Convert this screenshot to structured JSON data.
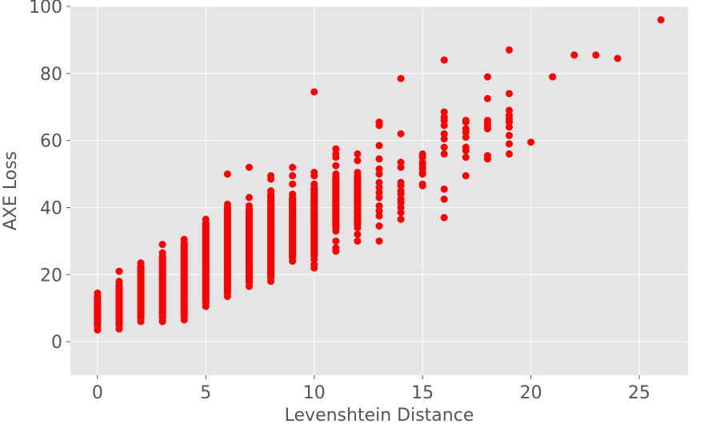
{
  "chart_data": {
    "type": "scatter",
    "title": "",
    "xlabel": "Levenshtein Distance",
    "ylabel": "AXE Loss",
    "xlim": [
      -1.25,
      27.25
    ],
    "ylim": [
      -10,
      100
    ],
    "xticks": [
      0,
      5,
      10,
      15,
      20,
      25
    ],
    "yticks": [
      0,
      20,
      40,
      60,
      80,
      100
    ],
    "grid": true,
    "marker_color": "#ff0000",
    "background_color": "#e5e5e5",
    "grid_color": "#ffffff",
    "series": [
      {
        "columns": [
          {
            "x": 0,
            "min": 3.5,
            "max": 14.5
          },
          {
            "x": 1,
            "min": 3.8,
            "max": 18.0
          },
          {
            "x": 2,
            "min": 6.0,
            "max": 23.5
          },
          {
            "x": 3,
            "min": 6.0,
            "max": 26.5
          },
          {
            "x": 4,
            "min": 6.5,
            "max": 30.5
          },
          {
            "x": 5,
            "min": 10.5,
            "max": 36.5
          },
          {
            "x": 6,
            "min": 13.5,
            "max": 41.0
          },
          {
            "x": 7,
            "min": 16.5,
            "max": 40.5
          },
          {
            "x": 8,
            "min": 18.0,
            "max": 45.0
          },
          {
            "x": 9,
            "min": 24.0,
            "max": 44.0
          },
          {
            "x": 10,
            "min": 24.5,
            "max": 47.0
          },
          {
            "x": 11,
            "min": 33.0,
            "max": 50.0
          },
          {
            "x": 12,
            "min": 34.0,
            "max": 50.5
          }
        ],
        "points": [
          [
            1,
            21.0
          ],
          [
            3,
            29.0
          ],
          [
            6,
            50.0
          ],
          [
            7,
            52.0
          ],
          [
            7,
            43.0
          ],
          [
            8,
            49.5
          ],
          [
            8,
            48.5
          ],
          [
            9,
            52.0
          ],
          [
            9,
            49.5
          ],
          [
            9,
            47.0
          ],
          [
            10,
            74.5
          ],
          [
            10,
            50.5
          ],
          [
            10,
            49.5
          ],
          [
            10,
            22.0
          ],
          [
            10,
            23.0
          ],
          [
            11,
            57.5
          ],
          [
            11,
            56.0
          ],
          [
            11,
            55.0
          ],
          [
            11,
            52.5
          ],
          [
            11,
            28.0
          ],
          [
            11,
            30.0
          ],
          [
            11,
            27.0
          ],
          [
            12,
            56.0
          ],
          [
            12,
            54.0
          ],
          [
            12,
            32.0
          ],
          [
            12,
            30.0
          ],
          [
            13,
            65.5
          ],
          [
            13,
            64.5
          ],
          [
            13,
            58.5
          ],
          [
            13,
            54.5
          ],
          [
            13,
            51.5
          ],
          [
            13,
            50.0
          ],
          [
            13,
            47.5
          ],
          [
            13,
            46.0
          ],
          [
            13,
            44.5
          ],
          [
            13,
            43.0
          ],
          [
            13,
            40.5
          ],
          [
            13,
            39.0
          ],
          [
            13,
            37.5
          ],
          [
            13,
            34.5
          ],
          [
            13,
            30.0
          ],
          [
            14,
            78.5
          ],
          [
            14,
            62.0
          ],
          [
            14,
            53.5
          ],
          [
            14,
            52.0
          ],
          [
            14,
            47.5
          ],
          [
            14,
            46.5
          ],
          [
            14,
            45.0
          ],
          [
            14,
            44.0
          ],
          [
            14,
            42.5
          ],
          [
            14,
            41.5
          ],
          [
            14,
            40.0
          ],
          [
            14,
            38.5
          ],
          [
            14,
            36.5
          ],
          [
            15,
            56.0
          ],
          [
            15,
            55.0
          ],
          [
            15,
            53.5
          ],
          [
            15,
            52.5
          ],
          [
            15,
            51.5
          ],
          [
            15,
            50.5
          ],
          [
            15,
            50.0
          ],
          [
            15,
            47.0
          ],
          [
            15,
            46.5
          ],
          [
            16,
            84.0
          ],
          [
            16,
            68.5
          ],
          [
            16,
            67.0
          ],
          [
            16,
            66.0
          ],
          [
            16,
            64.5
          ],
          [
            16,
            62.0
          ],
          [
            16,
            60.5
          ],
          [
            16,
            58.0
          ],
          [
            16,
            56.0
          ],
          [
            16,
            45.5
          ],
          [
            16,
            42.5
          ],
          [
            16,
            37.0
          ],
          [
            17,
            66.0
          ],
          [
            17,
            65.5
          ],
          [
            17,
            63.5
          ],
          [
            17,
            62.5
          ],
          [
            17,
            61.0
          ],
          [
            17,
            58.0
          ],
          [
            17,
            57.0
          ],
          [
            17,
            55.0
          ],
          [
            17,
            49.5
          ],
          [
            18,
            79.0
          ],
          [
            18,
            72.5
          ],
          [
            18,
            66.0
          ],
          [
            18,
            65.0
          ],
          [
            18,
            64.0
          ],
          [
            18,
            63.5
          ],
          [
            18,
            55.5
          ],
          [
            18,
            54.5
          ],
          [
            19,
            87.0
          ],
          [
            19,
            74.0
          ],
          [
            19,
            69.0
          ],
          [
            19,
            67.5
          ],
          [
            19,
            66.5
          ],
          [
            19,
            65.5
          ],
          [
            19,
            64.0
          ],
          [
            19,
            61.5
          ],
          [
            19,
            59.0
          ],
          [
            19,
            56.0
          ],
          [
            20,
            59.5
          ],
          [
            21,
            79.0
          ],
          [
            22,
            85.5
          ],
          [
            23,
            85.5
          ],
          [
            24,
            84.5
          ],
          [
            26,
            96.0
          ]
        ]
      }
    ]
  }
}
